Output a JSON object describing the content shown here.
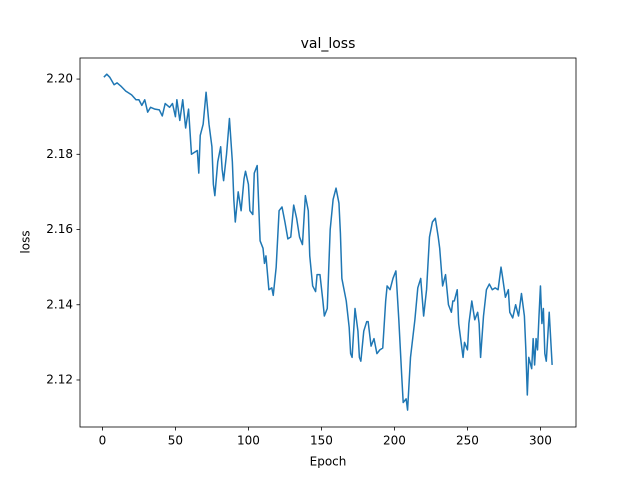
{
  "chart_data": {
    "type": "line",
    "title": "val_loss",
    "x_label": "Epoch",
    "y_label": "loss",
    "x": [
      1,
      3,
      5,
      8,
      10,
      13,
      16,
      20,
      23,
      25,
      27,
      29,
      31,
      33,
      36,
      39,
      41,
      43,
      46,
      48,
      50,
      51,
      53,
      55,
      57,
      59,
      61,
      63,
      65,
      66,
      67,
      69,
      71,
      73,
      75,
      76,
      77,
      79,
      81,
      82,
      83,
      85,
      87,
      89,
      90,
      91,
      93,
      95,
      97,
      98,
      100,
      101,
      103,
      104,
      106,
      108,
      110,
      111,
      112,
      114,
      116,
      117,
      119,
      121,
      123,
      125,
      127,
      129,
      131,
      133,
      135,
      137,
      139,
      141,
      142,
      144,
      146,
      147,
      149,
      151,
      152,
      154,
      156,
      158,
      160,
      162,
      163,
      164,
      166,
      167,
      169,
      170,
      171,
      173,
      175,
      176,
      177,
      179,
      181,
      182,
      184,
      186,
      188,
      190,
      192,
      194,
      195,
      197,
      199,
      201,
      203,
      205,
      206,
      208,
      209,
      211,
      214,
      216,
      218,
      220,
      222,
      224,
      226,
      228,
      230,
      231,
      233,
      235,
      237,
      239,
      240,
      241,
      243,
      244,
      246,
      247,
      248,
      250,
      251,
      253,
      255,
      257,
      258,
      259,
      261,
      263,
      265,
      267,
      269,
      271,
      273,
      274,
      276,
      278,
      279,
      281,
      283,
      285,
      287,
      289,
      290,
      291,
      292,
      294,
      295,
      296,
      297,
      298,
      299,
      300,
      301,
      302,
      303,
      304,
      306,
      307,
      308
    ],
    "series": [
      {
        "name": "val_loss",
        "color": "#1f77b4",
        "values": [
          2.2005,
          2.2013,
          2.2005,
          2.1985,
          2.199,
          2.198,
          2.1968,
          2.1958,
          2.1945,
          2.1945,
          2.193,
          2.1945,
          2.1912,
          2.1925,
          2.192,
          2.1918,
          2.1902,
          2.1935,
          2.1925,
          2.1935,
          2.19,
          2.1945,
          2.189,
          2.1945,
          2.187,
          2.192,
          2.18,
          2.1805,
          2.181,
          2.175,
          2.185,
          2.188,
          2.1965,
          2.188,
          2.182,
          2.172,
          2.169,
          2.178,
          2.182,
          2.176,
          2.173,
          2.18,
          2.1895,
          2.178,
          2.168,
          2.162,
          2.17,
          2.165,
          2.1735,
          2.1755,
          2.172,
          2.165,
          2.164,
          2.175,
          2.177,
          2.157,
          2.155,
          2.151,
          2.153,
          2.144,
          2.1445,
          2.1425,
          2.15,
          2.165,
          2.166,
          2.162,
          2.1575,
          2.158,
          2.1665,
          2.163,
          2.158,
          2.156,
          2.169,
          2.165,
          2.153,
          2.145,
          2.1435,
          2.148,
          2.148,
          2.141,
          2.137,
          2.139,
          2.16,
          2.168,
          2.171,
          2.167,
          2.159,
          2.147,
          2.143,
          2.141,
          2.134,
          2.127,
          2.126,
          2.139,
          2.133,
          2.126,
          2.125,
          2.133,
          2.1355,
          2.1355,
          2.129,
          2.131,
          2.127,
          2.128,
          2.1285,
          2.141,
          2.145,
          2.144,
          2.147,
          2.149,
          2.136,
          2.121,
          2.114,
          2.115,
          2.112,
          2.126,
          2.136,
          2.1445,
          2.147,
          2.137,
          2.144,
          2.158,
          2.162,
          2.163,
          2.158,
          2.155,
          2.145,
          2.148,
          2.14,
          2.138,
          2.141,
          2.141,
          2.144,
          2.135,
          2.129,
          2.126,
          2.13,
          2.128,
          2.135,
          2.141,
          2.136,
          2.138,
          2.135,
          2.126,
          2.137,
          2.144,
          2.1455,
          2.144,
          2.1445,
          2.144,
          2.15,
          2.1475,
          2.142,
          2.144,
          2.138,
          2.1365,
          2.14,
          2.137,
          2.143,
          2.137,
          2.128,
          2.116,
          2.126,
          2.123,
          2.131,
          2.124,
          2.131,
          2.128,
          2.137,
          2.145,
          2.135,
          2.139,
          2.127,
          2.125,
          2.138,
          2.131,
          2.124
        ]
      }
    ],
    "xlim": [
      -15.35,
      324.35
    ],
    "ylim": [
      2.1075,
      2.2056
    ],
    "xticks": [
      0,
      50,
      100,
      150,
      200,
      250,
      300
    ],
    "yticks": [
      2.12,
      2.14,
      2.16,
      2.18,
      {
        "value": 2.2,
        "label": "2.20"
      }
    ],
    "grid": false
  }
}
